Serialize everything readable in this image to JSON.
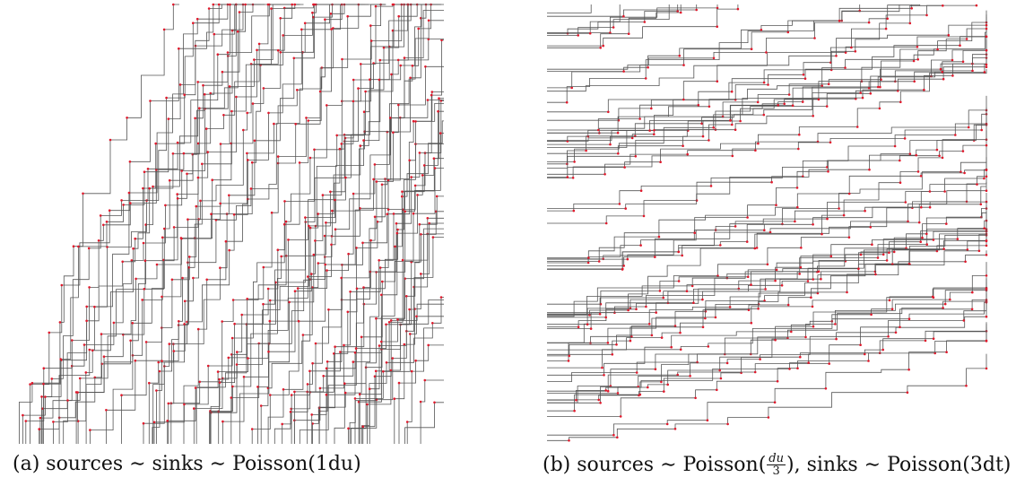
{
  "figures": [
    {
      "id": "a",
      "caption": "(a) sources ∼ sinks ∼ Poisson(1du)",
      "style": {
        "line_color": "#555555",
        "point_color": "#e0182b",
        "orientation": "vertical"
      },
      "seed": 11,
      "density": {
        "sources": 1.0,
        "sinks": 1.0
      }
    },
    {
      "id": "b",
      "caption_parts": {
        "prefix": "(b) sources ∼ Poisson(",
        "frac_num": "du",
        "frac_den": "3",
        "suffix": "), sinks ∼ Poisson(3dt)"
      },
      "style": {
        "line_color": "#555555",
        "point_color": "#e0182b",
        "orientation": "horizontal"
      },
      "seed": 29,
      "density": {
        "sources": 0.33,
        "sinks": 3.0
      }
    }
  ]
}
